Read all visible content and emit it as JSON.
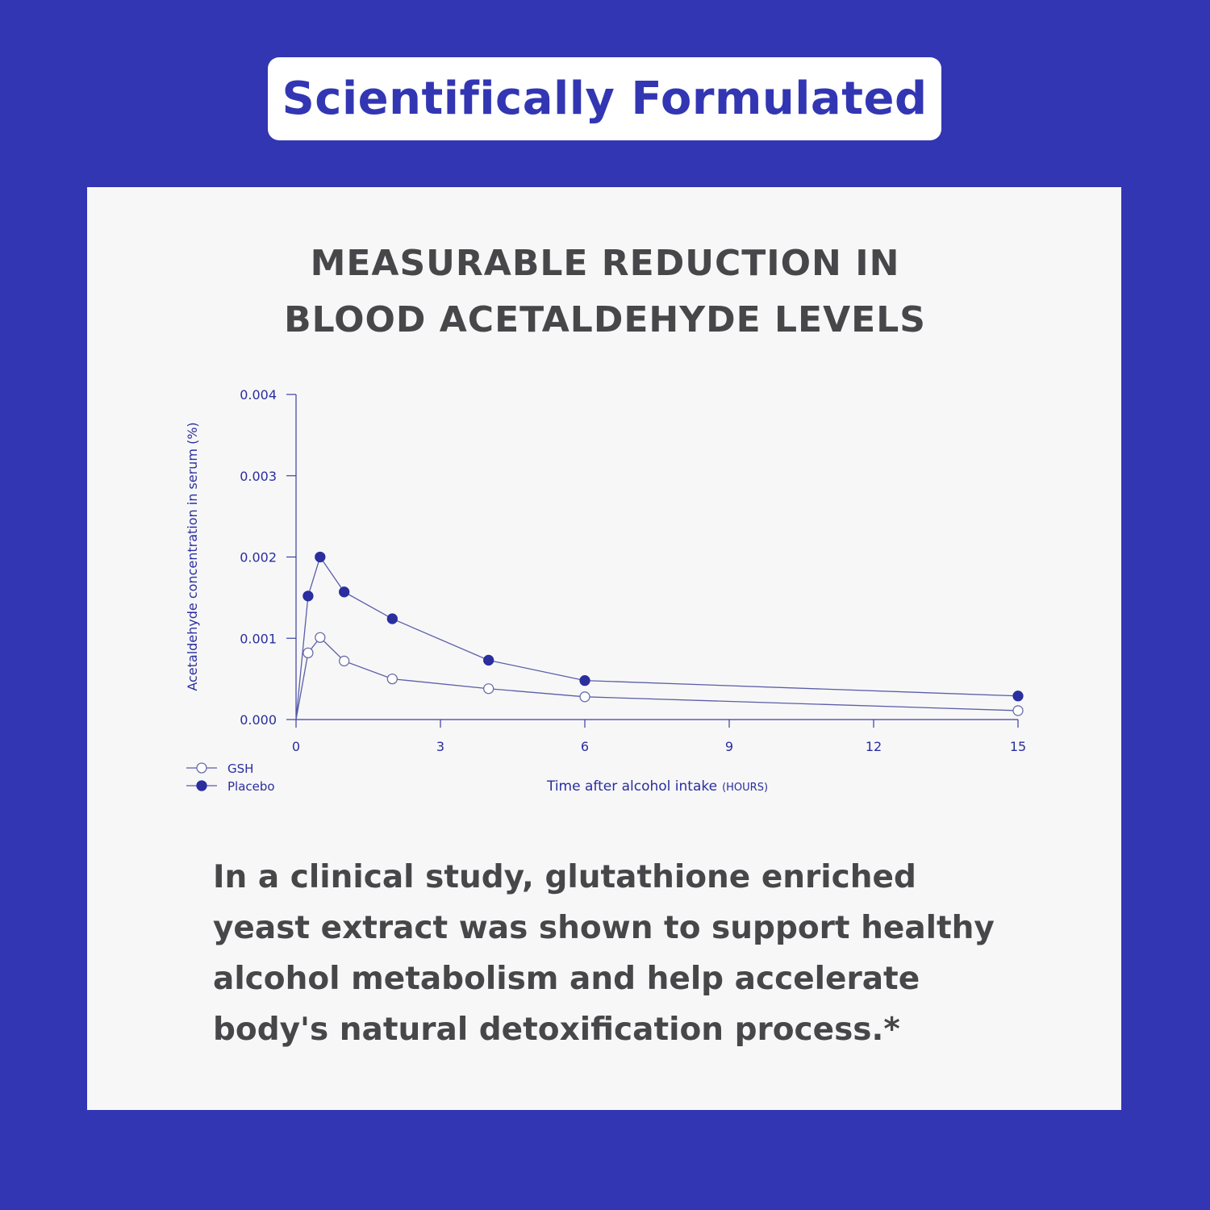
{
  "badge": {
    "title": "Scientifically Formulated"
  },
  "heading": {
    "line1": "MEASURABLE REDUCTION IN",
    "line2": "BLOOD ACETALDEHYDE LEVELS"
  },
  "chart_data": {
    "type": "line",
    "ylabel": "Acetaldehyde concentration in serum (%)",
    "xlabel": "Time after alcohol intake",
    "xlabel_unit": "(HOURS)",
    "x_ticks": [
      0,
      3,
      6,
      9,
      12,
      15
    ],
    "x_tick_labels": [
      "0",
      "3",
      "6",
      "9",
      "12",
      "15"
    ],
    "y_ticks": [
      0,
      0.001,
      0.002,
      0.003,
      0.004
    ],
    "y_tick_labels": [
      "0.000",
      "0.001",
      "0.002",
      "0.003",
      "0.004"
    ],
    "xlim": [
      0,
      15
    ],
    "ylim": [
      0,
      0.004
    ],
    "grid": false,
    "legend_position": "bottom-left",
    "series": [
      {
        "name": "GSH",
        "marker": "open-circle",
        "x": [
          0,
          0.25,
          0.5,
          1,
          2,
          4,
          6,
          15
        ],
        "y": [
          0,
          0.00082,
          0.00101,
          0.00072,
          0.0005,
          0.00038,
          0.00028,
          0.00011
        ]
      },
      {
        "name": "Placebo",
        "marker": "filled-circle",
        "x": [
          0,
          0.25,
          0.5,
          1,
          2,
          4,
          6,
          15
        ],
        "y": [
          0,
          0.00152,
          0.002,
          0.00157,
          0.00124,
          0.00073,
          0.00048,
          0.00029
        ]
      }
    ]
  },
  "colors": {
    "background": "#3236b3",
    "card": "#f7f7f8",
    "text": "#47474a",
    "chart_accent": "#2a2e9e"
  },
  "body": {
    "line1": "In a clinical study, glutathione enriched",
    "line2": "yeast extract was shown to support healthy",
    "line3": "alcohol metabolism and help accelerate",
    "line4": "body's natural detoxification process.*"
  }
}
